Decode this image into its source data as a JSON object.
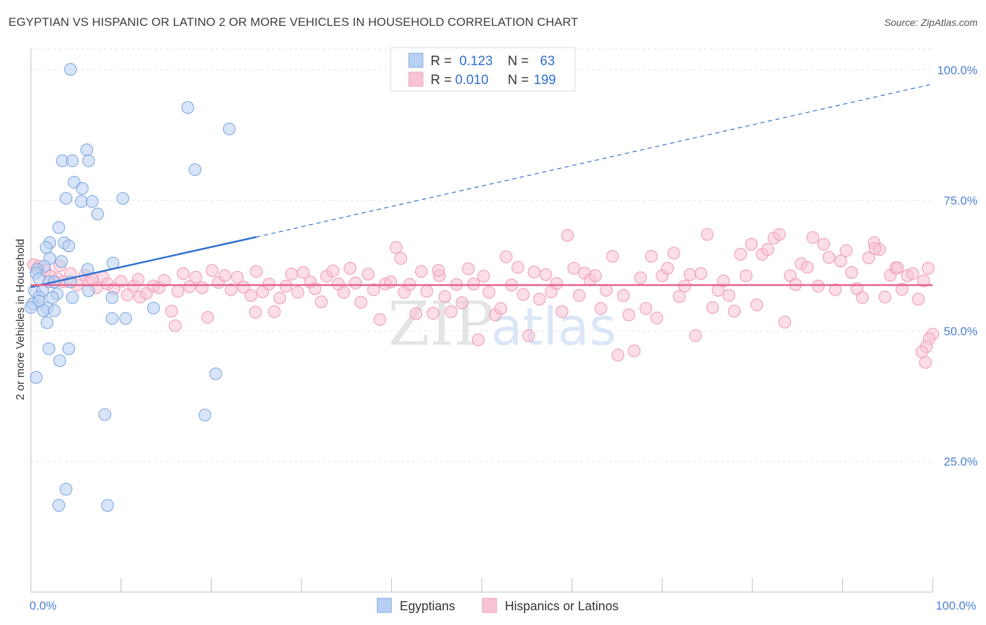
{
  "title": "EGYPTIAN VS HISPANIC OR LATINO 2 OR MORE VEHICLES IN HOUSEHOLD CORRELATION CHART",
  "source": "Source: ZipAtlas.com",
  "watermark": {
    "zip": "ZIP",
    "atlas": "atlas"
  },
  "colors": {
    "blue_fill": "#b8d0f3",
    "blue_stroke": "#7ea6df",
    "blue_line": "#2f6fd0",
    "pink_fill": "#f8c3d4",
    "pink_stroke": "#ef9db8",
    "pink_line": "#e8608a",
    "tick_blue": "#4a7fd0",
    "grid": "#e2e2e2"
  },
  "legend": {
    "rows": [
      {
        "r_label": "R =",
        "r_value": "0.123",
        "n_label": "N =",
        "n_value": "63"
      },
      {
        "r_label": "R =",
        "r_value": "0.010",
        "n_label": "N =",
        "n_value": "199"
      }
    ]
  },
  "chart_data": {
    "type": "scatter",
    "title": "EGYPTIAN VS HISPANIC OR LATINO 2 OR MORE VEHICLES IN HOUSEHOLD CORRELATION CHART",
    "xlabel": "",
    "ylabel": "2 or more Vehicles in Household",
    "xlim": [
      0,
      100
    ],
    "ylim": [
      0,
      104
    ],
    "x_tick_labels": {
      "left": "0.0%",
      "right": "100.0%"
    },
    "y_ticks": [
      {
        "value": 25,
        "label": "25.0%"
      },
      {
        "value": 50,
        "label": "50.0%"
      },
      {
        "value": 75,
        "label": "75.0%"
      },
      {
        "value": 100,
        "label": "100.0%"
      }
    ],
    "grid": true,
    "series": [
      {
        "name": "Egyptians",
        "color": "blue",
        "trend": {
          "x0": 0,
          "y0": 58.4,
          "x1": 25,
          "y1": 68.0,
          "dashed_to_x": 100,
          "dashed_to_y": 97.3
        },
        "points": [
          [
            4.4,
            100.1
          ],
          [
            17.4,
            92.8
          ],
          [
            22.0,
            88.7
          ],
          [
            6.2,
            84.7
          ],
          [
            3.5,
            82.6
          ],
          [
            4.6,
            82.6
          ],
          [
            6.4,
            82.6
          ],
          [
            18.2,
            80.9
          ],
          [
            4.8,
            78.5
          ],
          [
            5.7,
            77.3
          ],
          [
            3.9,
            75.4
          ],
          [
            5.6,
            74.8
          ],
          [
            6.8,
            74.8
          ],
          [
            10.2,
            75.4
          ],
          [
            7.4,
            72.4
          ],
          [
            3.1,
            69.8
          ],
          [
            2.1,
            66.9
          ],
          [
            3.7,
            66.9
          ],
          [
            4.2,
            66.3
          ],
          [
            1.7,
            66.0
          ],
          [
            2.1,
            63.9
          ],
          [
            3.4,
            63.3
          ],
          [
            9.1,
            63.0
          ],
          [
            1.5,
            62.4
          ],
          [
            0.7,
            61.8
          ],
          [
            0.6,
            61.1
          ],
          [
            6.3,
            61.8
          ],
          [
            0.9,
            60.0
          ],
          [
            2.0,
            59.4
          ],
          [
            4.4,
            59.4
          ],
          [
            2.6,
            59.4
          ],
          [
            0.4,
            57.7
          ],
          [
            1.3,
            57.7
          ],
          [
            2.9,
            57.1
          ],
          [
            6.4,
            57.7
          ],
          [
            0.9,
            56.5
          ],
          [
            2.4,
            56.4
          ],
          [
            4.6,
            56.4
          ],
          [
            9.0,
            56.4
          ],
          [
            0.2,
            55.2
          ],
          [
            0.9,
            55.7
          ],
          [
            1.8,
            54.4
          ],
          [
            1.4,
            53.9
          ],
          [
            2.6,
            53.9
          ],
          [
            13.6,
            54.4
          ],
          [
            0.0,
            54.5
          ],
          [
            9.0,
            52.4
          ],
          [
            10.5,
            52.4
          ],
          [
            1.8,
            51.6
          ],
          [
            2.0,
            46.6
          ],
          [
            4.2,
            46.6
          ],
          [
            3.2,
            44.3
          ],
          [
            20.5,
            41.8
          ],
          [
            0.6,
            41.1
          ],
          [
            8.2,
            34.0
          ],
          [
            19.3,
            33.9
          ],
          [
            3.9,
            19.7
          ],
          [
            3.1,
            16.6
          ],
          [
            8.5,
            16.6
          ]
        ]
      },
      {
        "name": "Hispanics or Latinos",
        "color": "pink",
        "trend": {
          "x0": 0,
          "y0": 58.8,
          "x1": 100,
          "y1": 58.8
        },
        "points": [
          [
            0.3,
            62.7
          ],
          [
            0.9,
            62.4
          ],
          [
            1.6,
            61.6
          ],
          [
            2.2,
            60.5
          ],
          [
            3.0,
            60.0
          ],
          [
            3.6,
            59.4
          ],
          [
            4.4,
            61.0
          ],
          [
            5.1,
            58.8
          ],
          [
            6.0,
            60.7
          ],
          [
            6.5,
            59.6
          ],
          [
            7.3,
            58.3
          ],
          [
            8.0,
            60.3
          ],
          [
            8.5,
            59.0
          ],
          [
            9.2,
            58.1
          ],
          [
            10.0,
            59.5
          ],
          [
            10.7,
            56.9
          ],
          [
            11.4,
            58.6
          ],
          [
            12.1,
            56.5
          ],
          [
            12.8,
            57.2
          ],
          [
            13.6,
            58.6
          ],
          [
            14.2,
            58.3
          ],
          [
            14.8,
            59.7
          ],
          [
            15.6,
            53.8
          ],
          [
            16.0,
            51.0
          ],
          [
            16.3,
            57.6
          ],
          [
            16.9,
            61.0
          ],
          [
            17.6,
            58.5
          ],
          [
            18.3,
            60.3
          ],
          [
            19.0,
            58.3
          ],
          [
            19.6,
            52.6
          ],
          [
            20.1,
            61.6
          ],
          [
            20.8,
            59.3
          ],
          [
            21.5,
            60.6
          ],
          [
            22.2,
            57.9
          ],
          [
            22.9,
            60.3
          ],
          [
            23.6,
            58.4
          ],
          [
            24.4,
            56.8
          ],
          [
            25.0,
            61.4
          ],
          [
            25.7,
            57.5
          ],
          [
            26.4,
            59.0
          ],
          [
            27.0,
            53.7
          ],
          [
            27.6,
            56.3
          ],
          [
            28.3,
            58.6
          ],
          [
            28.9,
            60.9
          ],
          [
            29.6,
            57.4
          ],
          [
            30.2,
            61.2
          ],
          [
            31.0,
            59.4
          ],
          [
            31.5,
            58.1
          ],
          [
            32.2,
            55.6
          ],
          [
            32.8,
            60.5
          ],
          [
            33.5,
            61.5
          ],
          [
            34.1,
            59.0
          ],
          [
            34.7,
            57.4
          ],
          [
            35.4,
            62.0
          ],
          [
            36.0,
            59.2
          ],
          [
            36.6,
            55.5
          ],
          [
            37.4,
            60.9
          ],
          [
            38.0,
            57.9
          ],
          [
            38.7,
            52.2
          ],
          [
            39.3,
            59.0
          ],
          [
            39.9,
            59.4
          ],
          [
            40.5,
            66.0
          ],
          [
            41.0,
            63.9
          ],
          [
            41.4,
            57.4
          ],
          [
            42.0,
            58.9
          ],
          [
            42.7,
            53.3
          ],
          [
            43.3,
            61.4
          ],
          [
            43.9,
            57.6
          ],
          [
            44.6,
            53.4
          ],
          [
            45.3,
            60.6
          ],
          [
            45.9,
            56.6
          ],
          [
            46.6,
            53.7
          ],
          [
            47.2,
            58.9
          ],
          [
            47.8,
            55.4
          ],
          [
            48.5,
            61.9
          ],
          [
            49.1,
            59.0
          ],
          [
            49.6,
            48.3
          ],
          [
            50.2,
            60.5
          ],
          [
            50.8,
            57.4
          ],
          [
            51.5,
            53.1
          ],
          [
            52.1,
            54.3
          ],
          [
            52.7,
            64.2
          ],
          [
            53.3,
            58.8
          ],
          [
            54.0,
            62.2
          ],
          [
            54.6,
            57.0
          ],
          [
            55.2,
            49.1
          ],
          [
            55.8,
            61.3
          ],
          [
            56.4,
            56.1
          ],
          [
            57.1,
            60.8
          ],
          [
            57.7,
            57.5
          ],
          [
            58.3,
            59.1
          ],
          [
            58.9,
            53.7
          ],
          [
            59.5,
            68.3
          ],
          [
            60.2,
            62.0
          ],
          [
            60.8,
            56.8
          ],
          [
            61.4,
            61.1
          ],
          [
            62.0,
            59.8
          ],
          [
            62.6,
            60.6
          ],
          [
            63.2,
            54.3
          ],
          [
            63.8,
            57.8
          ],
          [
            64.5,
            64.3
          ],
          [
            65.1,
            45.4
          ],
          [
            65.7,
            56.8
          ],
          [
            66.3,
            53.1
          ],
          [
            66.9,
            46.2
          ],
          [
            67.6,
            60.2
          ],
          [
            68.2,
            54.3
          ],
          [
            68.8,
            64.3
          ],
          [
            69.4,
            52.5
          ],
          [
            70.0,
            60.6
          ],
          [
            70.6,
            62.0
          ],
          [
            71.3,
            64.9
          ],
          [
            71.9,
            56.6
          ],
          [
            72.5,
            58.6
          ],
          [
            73.1,
            60.8
          ],
          [
            73.7,
            49.1
          ],
          [
            74.3,
            61.0
          ],
          [
            75.0,
            68.5
          ],
          [
            75.6,
            54.5
          ],
          [
            76.2,
            57.8
          ],
          [
            76.8,
            59.6
          ],
          [
            77.4,
            56.8
          ],
          [
            78.0,
            53.8
          ],
          [
            78.7,
            64.7
          ],
          [
            79.3,
            60.6
          ],
          [
            79.9,
            66.6
          ],
          [
            80.5,
            55.0
          ],
          [
            81.1,
            64.7
          ],
          [
            81.7,
            65.6
          ],
          [
            82.4,
            67.8
          ],
          [
            83.0,
            68.5
          ],
          [
            83.6,
            51.7
          ],
          [
            84.2,
            60.6
          ],
          [
            84.8,
            58.9
          ],
          [
            85.4,
            62.9
          ],
          [
            86.1,
            62.2
          ],
          [
            86.7,
            67.9
          ],
          [
            87.3,
            58.6
          ],
          [
            87.9,
            66.6
          ],
          [
            88.5,
            64.1
          ],
          [
            89.2,
            57.9
          ],
          [
            89.8,
            63.4
          ],
          [
            90.4,
            65.4
          ],
          [
            91.0,
            61.2
          ],
          [
            91.6,
            58.1
          ],
          [
            92.2,
            56.4
          ],
          [
            92.9,
            64.0
          ],
          [
            93.5,
            66.9
          ],
          [
            94.1,
            65.6
          ],
          [
            94.7,
            56.5
          ],
          [
            95.3,
            60.7
          ],
          [
            95.9,
            62.1
          ],
          [
            96.6,
            58.0
          ],
          [
            97.2,
            60.6
          ],
          [
            97.8,
            61.0
          ],
          [
            98.4,
            56.1
          ],
          [
            99.0,
            59.6
          ],
          [
            99.5,
            62.0
          ],
          [
            100.0,
            49.4
          ],
          [
            99.6,
            48.5
          ],
          [
            99.3,
            47.0
          ],
          [
            98.8,
            46.0
          ],
          [
            99.2,
            44.0
          ],
          [
            3.2,
            62.5
          ],
          [
            6.8,
            59.9
          ],
          [
            11.9,
            59.9
          ],
          [
            24.9,
            53.6
          ],
          [
            45.2,
            61.6
          ],
          [
            96.1,
            62.1
          ],
          [
            93.6,
            65.8
          ]
        ]
      }
    ]
  },
  "bottom_legend": {
    "items": [
      {
        "label": "Egyptians"
      },
      {
        "label": "Hispanics or Latinos"
      }
    ]
  }
}
